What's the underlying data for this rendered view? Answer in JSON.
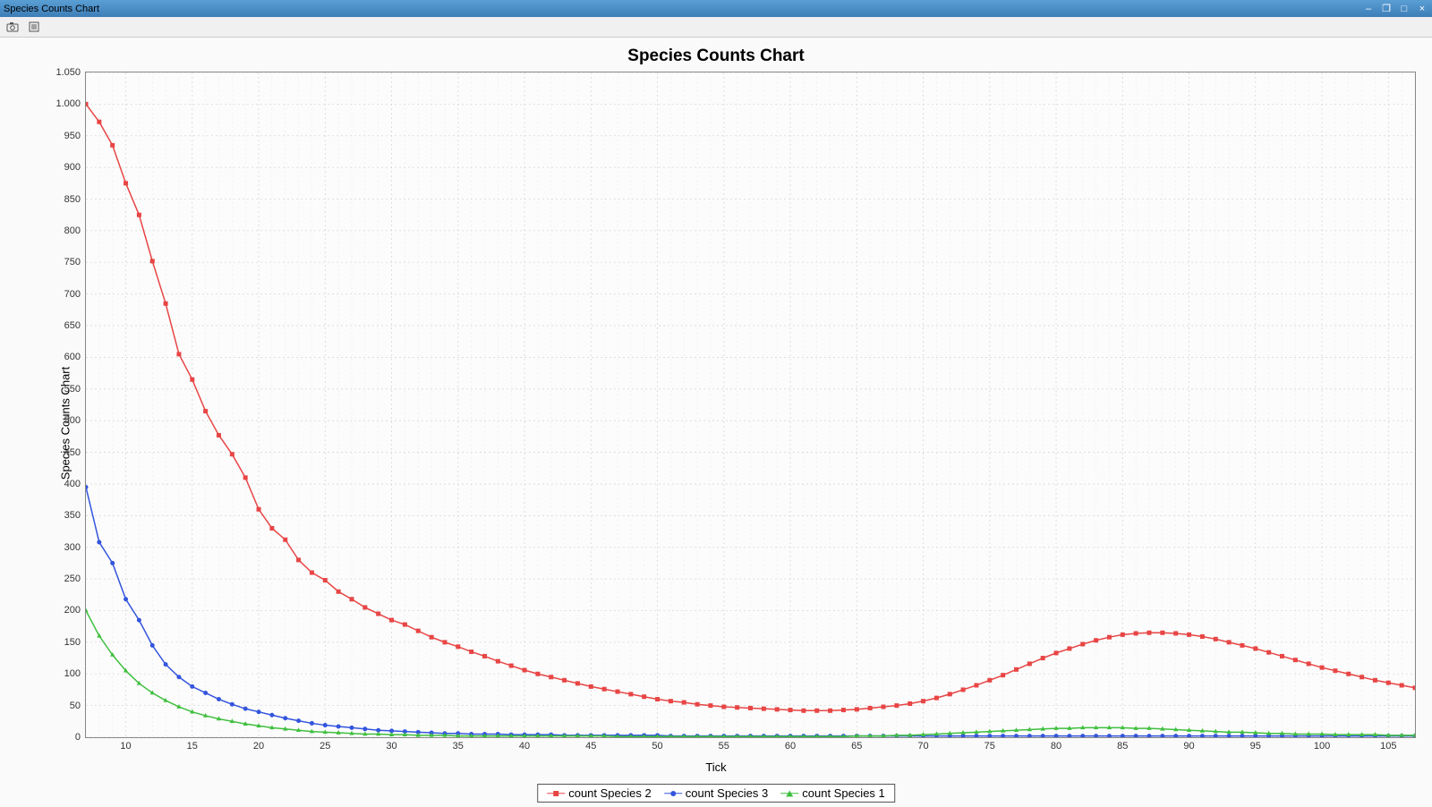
{
  "window": {
    "title": "Species Counts Chart",
    "controls": {
      "minimize": "–",
      "restore": "❐",
      "maximize": "□",
      "close": "×"
    }
  },
  "toolbar": {
    "camera_icon": "camera-icon",
    "settings_icon": "settings-icon"
  },
  "chart": {
    "title": "Species Counts Chart",
    "title_fontsize": 19,
    "xlabel": "Tick",
    "ylabel": "Species Counts Chart",
    "label_fontsize": 13,
    "background_color": "#fcfcfc",
    "outer_background": "#fafafa",
    "grid_color": "#d8d8d8",
    "grid_dash": "2,3",
    "axis_color": "#888888",
    "xlim": [
      7,
      107
    ],
    "ylim": [
      0,
      1050
    ],
    "xtick_step": 5,
    "xtick_start": 10,
    "ytick_step": 50,
    "ytick_start": 0,
    "ytick_format": "european_thousand_sep",
    "line_width": 1.5,
    "marker_size": 5,
    "series": [
      {
        "label": "count Species 2",
        "color": "#e84545",
        "marker": "square",
        "x": [
          7,
          8,
          9,
          10,
          11,
          12,
          13,
          14,
          15,
          16,
          17,
          18,
          19,
          20,
          21,
          22,
          23,
          24,
          25,
          26,
          27,
          28,
          29,
          30,
          31,
          32,
          33,
          34,
          35,
          36,
          37,
          38,
          39,
          40,
          41,
          42,
          43,
          44,
          45,
          46,
          47,
          48,
          49,
          50,
          51,
          52,
          53,
          54,
          55,
          56,
          57,
          58,
          59,
          60,
          61,
          62,
          63,
          64,
          65,
          66,
          67,
          68,
          69,
          70,
          71,
          72,
          73,
          74,
          75,
          76,
          77,
          78,
          79,
          80,
          81,
          82,
          83,
          84,
          85,
          86,
          87,
          88,
          89,
          90,
          91,
          92,
          93,
          94,
          95,
          96,
          97,
          98,
          99,
          100,
          101,
          102,
          103,
          104,
          105,
          106,
          107
        ],
        "y": [
          1000,
          972,
          935,
          875,
          825,
          752,
          685,
          605,
          565,
          515,
          477,
          447,
          410,
          360,
          330,
          312,
          280,
          260,
          248,
          230,
          218,
          205,
          195,
          185,
          178,
          168,
          158,
          150,
          143,
          135,
          128,
          120,
          113,
          106,
          100,
          95,
          90,
          85,
          80,
          76,
          72,
          68,
          64,
          60,
          57,
          55,
          52,
          50,
          48,
          47,
          46,
          45,
          44,
          43,
          42,
          42,
          42,
          43,
          44,
          46,
          48,
          50,
          53,
          57,
          62,
          68,
          75,
          82,
          90,
          98,
          107,
          116,
          125,
          133,
          140,
          147,
          153,
          158,
          162,
          164,
          165,
          165,
          164,
          162,
          159,
          155,
          150,
          145,
          140,
          134,
          128,
          122,
          116,
          110,
          105,
          100,
          95,
          90,
          86,
          82,
          78
        ]
      },
      {
        "label": "count Species 3",
        "color": "#3355dd",
        "marker": "circle",
        "x": [
          7,
          8,
          9,
          10,
          11,
          12,
          13,
          14,
          15,
          16,
          17,
          18,
          19,
          20,
          21,
          22,
          23,
          24,
          25,
          26,
          27,
          28,
          29,
          30,
          31,
          32,
          33,
          34,
          35,
          36,
          37,
          38,
          39,
          40,
          41,
          42,
          43,
          44,
          45,
          46,
          47,
          48,
          49,
          50,
          51,
          52,
          53,
          54,
          55,
          56,
          57,
          58,
          59,
          60,
          61,
          62,
          63,
          64,
          65,
          66,
          67,
          68,
          69,
          70,
          71,
          72,
          73,
          74,
          75,
          76,
          77,
          78,
          79,
          80,
          81,
          82,
          83,
          84,
          85,
          86,
          87,
          88,
          89,
          90,
          91,
          92,
          93,
          94,
          95,
          96,
          97,
          98,
          99,
          100,
          101,
          102,
          103,
          104,
          105,
          106,
          107
        ],
        "y": [
          395,
          308,
          275,
          218,
          185,
          145,
          115,
          95,
          80,
          70,
          60,
          52,
          45,
          40,
          35,
          30,
          26,
          22,
          19,
          17,
          15,
          13,
          11,
          10,
          9,
          8,
          7,
          6,
          6,
          5,
          5,
          5,
          4,
          4,
          4,
          4,
          3,
          3,
          3,
          3,
          3,
          3,
          3,
          3,
          2,
          2,
          2,
          2,
          2,
          2,
          2,
          2,
          2,
          2,
          2,
          2,
          2,
          2,
          2,
          2,
          2,
          2,
          2,
          2,
          2,
          2,
          2,
          2,
          2,
          2,
          2,
          2,
          2,
          2,
          2,
          2,
          2,
          2,
          2,
          2,
          2,
          2,
          2,
          2,
          2,
          2,
          2,
          2,
          2,
          2,
          2,
          2,
          2,
          2,
          2,
          2,
          2,
          2,
          2,
          2,
          2
        ]
      },
      {
        "label": "count Species 1",
        "color": "#3fbf3f",
        "marker": "triangle",
        "x": [
          7,
          8,
          9,
          10,
          11,
          12,
          13,
          14,
          15,
          16,
          17,
          18,
          19,
          20,
          21,
          22,
          23,
          24,
          25,
          26,
          27,
          28,
          29,
          30,
          31,
          32,
          33,
          34,
          35,
          36,
          37,
          38,
          39,
          40,
          41,
          42,
          43,
          44,
          45,
          46,
          47,
          48,
          49,
          50,
          51,
          52,
          53,
          54,
          55,
          56,
          57,
          58,
          59,
          60,
          61,
          62,
          63,
          64,
          65,
          66,
          67,
          68,
          69,
          70,
          71,
          72,
          73,
          74,
          75,
          76,
          77,
          78,
          79,
          80,
          81,
          82,
          83,
          84,
          85,
          86,
          87,
          88,
          89,
          90,
          91,
          92,
          93,
          94,
          95,
          96,
          97,
          98,
          99,
          100,
          101,
          102,
          103,
          104,
          105,
          106,
          107
        ],
        "y": [
          200,
          160,
          130,
          105,
          85,
          70,
          58,
          48,
          40,
          34,
          29,
          25,
          21,
          18,
          15,
          13,
          11,
          9,
          8,
          7,
          6,
          5,
          5,
          4,
          4,
          3,
          3,
          3,
          2,
          2,
          2,
          2,
          2,
          2,
          2,
          2,
          2,
          2,
          2,
          2,
          1,
          1,
          1,
          1,
          1,
          1,
          1,
          1,
          1,
          1,
          1,
          1,
          1,
          1,
          1,
          1,
          1,
          1,
          2,
          2,
          2,
          3,
          3,
          4,
          5,
          6,
          7,
          8,
          9,
          10,
          11,
          12,
          13,
          14,
          14,
          15,
          15,
          15,
          15,
          14,
          14,
          13,
          12,
          11,
          10,
          9,
          8,
          8,
          7,
          6,
          6,
          5,
          5,
          5,
          4,
          4,
          4,
          4,
          3,
          3,
          3
        ]
      }
    ],
    "legend": {
      "position": "bottom-center",
      "border_color": "#555555",
      "background_color": "#ffffff",
      "fontsize": 13
    }
  }
}
